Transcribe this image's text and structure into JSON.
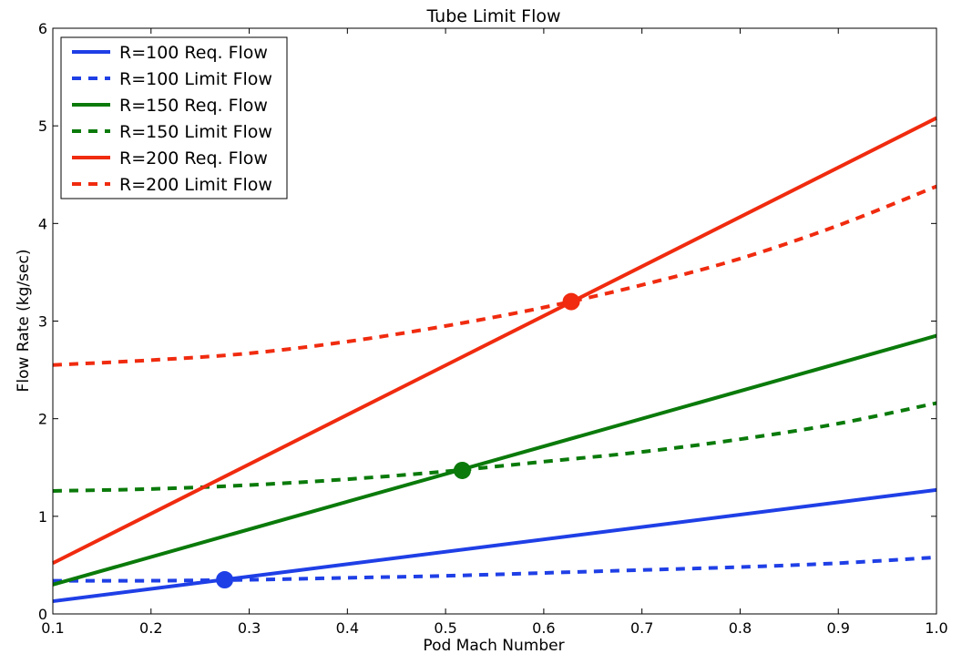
{
  "chart_data": {
    "type": "line",
    "title": "Tube Limit Flow",
    "xlabel": "Pod Mach Number",
    "ylabel": "Flow Rate (kg/sec)",
    "xlim": [
      0.1,
      1.0
    ],
    "ylim": [
      0,
      6
    ],
    "xticks": [
      "0.1",
      "0.2",
      "0.3",
      "0.4",
      "0.5",
      "0.6",
      "0.7",
      "0.8",
      "0.9",
      "1.0"
    ],
    "yticks": [
      "0",
      "1",
      "2",
      "3",
      "4",
      "5",
      "6"
    ],
    "grid": false,
    "legend_position": "top-left",
    "series": [
      {
        "name": "R=100 Req. Flow",
        "color": "#1f3fe6",
        "style": "solid",
        "x": [
          0.1,
          1.0
        ],
        "y": [
          0.13,
          1.27
        ]
      },
      {
        "name": "R=100 Limit Flow",
        "color": "#1f3fe6",
        "style": "dashed",
        "x": [
          0.1,
          0.2,
          0.3,
          0.4,
          0.5,
          0.6,
          0.7,
          0.8,
          0.9,
          1.0
        ],
        "y": [
          0.34,
          0.34,
          0.35,
          0.37,
          0.39,
          0.42,
          0.45,
          0.48,
          0.52,
          0.58
        ]
      },
      {
        "name": "R=150 Req. Flow",
        "color": "#0a7a0a",
        "style": "solid",
        "x": [
          0.1,
          1.0
        ],
        "y": [
          0.3,
          2.85
        ]
      },
      {
        "name": "R=150 Limit Flow",
        "color": "#0a7a0a",
        "style": "dashed",
        "x": [
          0.1,
          0.2,
          0.3,
          0.4,
          0.5,
          0.6,
          0.7,
          0.8,
          0.9,
          1.0
        ],
        "y": [
          1.26,
          1.28,
          1.32,
          1.38,
          1.46,
          1.56,
          1.66,
          1.79,
          1.95,
          2.16
        ]
      },
      {
        "name": "R=200 Req. Flow",
        "color": "#f02b0f",
        "style": "solid",
        "x": [
          0.1,
          1.0
        ],
        "y": [
          0.52,
          5.08
        ]
      },
      {
        "name": "R=200 Limit Flow",
        "color": "#f02b0f",
        "style": "dashed",
        "x": [
          0.1,
          0.2,
          0.3,
          0.4,
          0.5,
          0.6,
          0.7,
          0.8,
          0.9,
          1.0
        ],
        "y": [
          2.55,
          2.6,
          2.67,
          2.79,
          2.95,
          3.14,
          3.37,
          3.64,
          3.98,
          4.38
        ]
      }
    ],
    "markers": [
      {
        "x": 0.275,
        "y": 0.35,
        "color": "#1f3fe6"
      },
      {
        "x": 0.517,
        "y": 1.47,
        "color": "#0a7a0a"
      },
      {
        "x": 0.628,
        "y": 3.2,
        "color": "#f02b0f"
      }
    ]
  }
}
